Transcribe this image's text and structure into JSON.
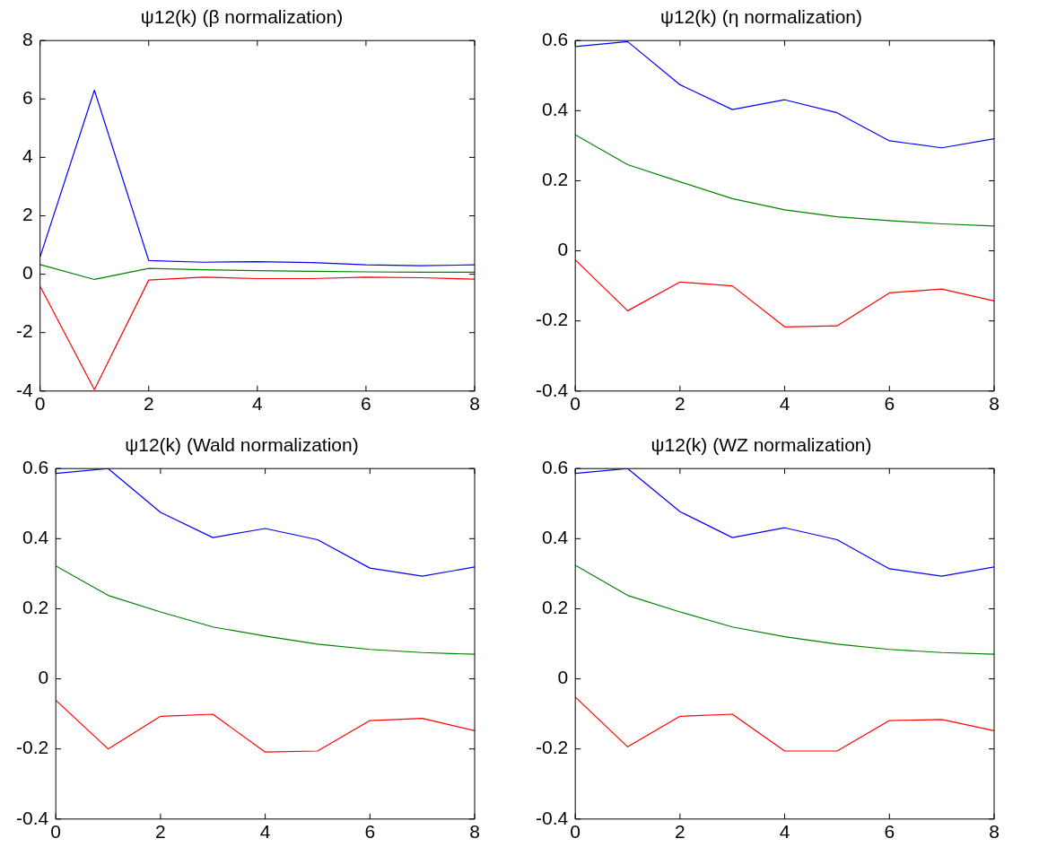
{
  "chart_data": [
    {
      "type": "line",
      "title": "ψ12(k) (β normalization)",
      "x": [
        0,
        1,
        2,
        3,
        4,
        5,
        6,
        7,
        8
      ],
      "xlim": [
        0,
        8
      ],
      "xticks": [
        0,
        2,
        4,
        6,
        8
      ],
      "ylim": [
        -4,
        8
      ],
      "yticks": [
        -4,
        -2,
        0,
        2,
        4,
        6,
        8
      ],
      "grid": false,
      "legend": false,
      "marker": "none",
      "line_style": "solid",
      "series": [
        {
          "color": "#0000ff",
          "values": [
            0.59,
            6.3,
            0.47,
            0.41,
            0.43,
            0.4,
            0.32,
            0.29,
            0.32
          ]
        },
        {
          "color": "#008000",
          "values": [
            0.33,
            -0.18,
            0.2,
            0.15,
            0.12,
            0.1,
            0.08,
            0.07,
            0.07
          ]
        },
        {
          "color": "#ff0000",
          "values": [
            -0.41,
            -3.95,
            -0.2,
            -0.1,
            -0.15,
            -0.15,
            -0.1,
            -0.12,
            -0.17
          ]
        }
      ]
    },
    {
      "type": "line",
      "title": "ψ12(k) (η normalization)",
      "x": [
        0,
        1,
        2,
        3,
        4,
        5,
        6,
        7,
        8
      ],
      "xlim": [
        0,
        8
      ],
      "xticks": [
        0,
        2,
        4,
        6,
        8
      ],
      "ylim": [
        -0.4,
        0.6
      ],
      "yticks": [
        -0.4,
        -0.2,
        0,
        0.2,
        0.4,
        0.6
      ],
      "grid": false,
      "legend": false,
      "marker": "none",
      "line_style": "solid",
      "series": [
        {
          "color": "#0000ff",
          "values": [
            0.583,
            0.597,
            0.474,
            0.403,
            0.431,
            0.394,
            0.314,
            0.294,
            0.32
          ]
        },
        {
          "color": "#008000",
          "values": [
            0.331,
            0.246,
            0.197,
            0.149,
            0.117,
            0.097,
            0.086,
            0.077,
            0.071
          ]
        },
        {
          "color": "#ff0000",
          "values": [
            -0.026,
            -0.171,
            -0.089,
            -0.1,
            -0.217,
            -0.214,
            -0.12,
            -0.109,
            -0.143
          ]
        }
      ]
    },
    {
      "type": "line",
      "title": "ψ12(k) (Wald normalization)",
      "x": [
        0,
        1,
        2,
        3,
        4,
        5,
        6,
        7,
        8
      ],
      "xlim": [
        0,
        8
      ],
      "xticks": [
        0,
        2,
        4,
        6,
        8
      ],
      "ylim": [
        -0.4,
        0.6
      ],
      "yticks": [
        -0.4,
        -0.2,
        0,
        0.2,
        0.4,
        0.6
      ],
      "grid": false,
      "legend": false,
      "marker": "none",
      "line_style": "solid",
      "series": [
        {
          "color": "#0000ff",
          "values": [
            0.586,
            0.6,
            0.475,
            0.403,
            0.429,
            0.397,
            0.316,
            0.293,
            0.319
          ]
        },
        {
          "color": "#008000",
          "values": [
            0.322,
            0.238,
            0.191,
            0.148,
            0.122,
            0.099,
            0.084,
            0.075,
            0.07
          ]
        },
        {
          "color": "#ff0000",
          "values": [
            -0.061,
            -0.2,
            -0.107,
            -0.101,
            -0.209,
            -0.206,
            -0.119,
            -0.113,
            -0.148
          ]
        }
      ]
    },
    {
      "type": "line",
      "title": "ψ12(k) (WZ normalization)",
      "x": [
        0,
        1,
        2,
        3,
        4,
        5,
        6,
        7,
        8
      ],
      "xlim": [
        0,
        8
      ],
      "xticks": [
        0,
        2,
        4,
        6,
        8
      ],
      "ylim": [
        -0.4,
        0.6
      ],
      "yticks": [
        -0.4,
        -0.2,
        0,
        0.2,
        0.4,
        0.6
      ],
      "grid": false,
      "legend": false,
      "marker": "none",
      "line_style": "solid",
      "series": [
        {
          "color": "#0000ff",
          "values": [
            0.586,
            0.6,
            0.477,
            0.403,
            0.431,
            0.397,
            0.314,
            0.293,
            0.319
          ]
        },
        {
          "color": "#008000",
          "values": [
            0.324,
            0.238,
            0.191,
            0.148,
            0.12,
            0.099,
            0.084,
            0.075,
            0.07
          ]
        },
        {
          "color": "#ff0000",
          "values": [
            -0.052,
            -0.194,
            -0.107,
            -0.101,
            -0.206,
            -0.206,
            -0.119,
            -0.116,
            -0.148
          ]
        }
      ]
    }
  ]
}
